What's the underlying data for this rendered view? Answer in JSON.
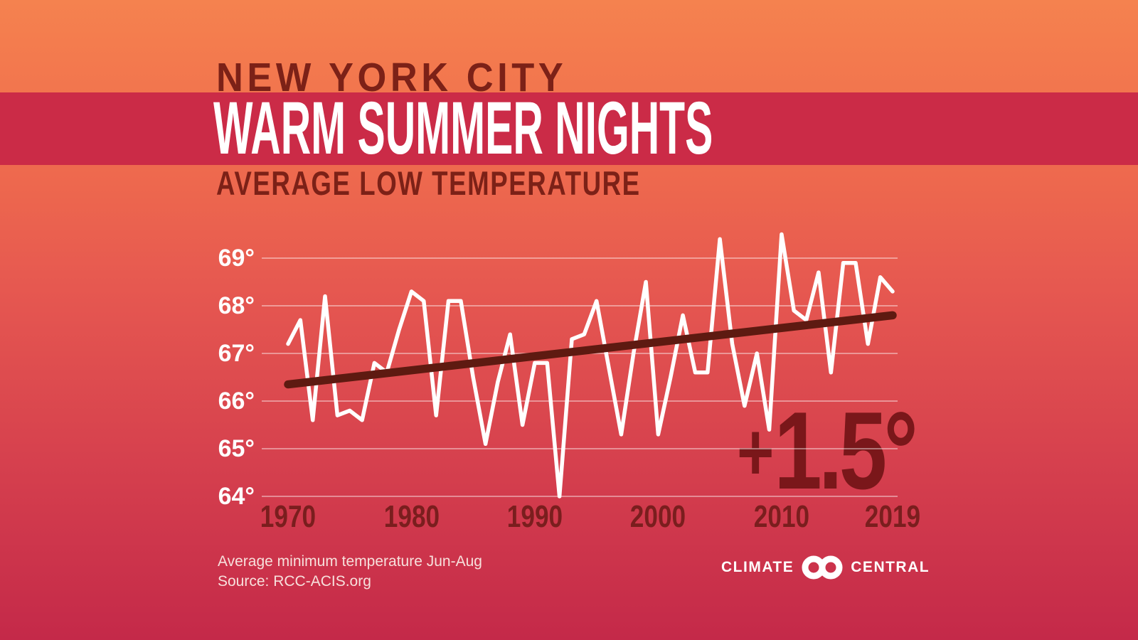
{
  "header": {
    "kicker": "NEW YORK CITY",
    "title": "WARM SUMMER NIGHTS",
    "subtitle": "AVERAGE LOW TEMPERATURE"
  },
  "annotation": {
    "plus": "+",
    "value": "1.5",
    "degree": "°",
    "meaning": "trend increase over 1970-2019"
  },
  "footer": {
    "note_line1": "Average minimum temperature Jun-Aug",
    "note_line2": "Source: RCC-ACIS.org",
    "logo": {
      "left": "CLIMATE",
      "right": "CENTRAL",
      "icon": "interlocking-circles-icon"
    }
  },
  "colors": {
    "background_top": "#F5824F",
    "background_bottom": "#C42949",
    "title_band": "#CB2B47",
    "dark_title_text": "#7C2117",
    "white_text": "#FFFFFF",
    "axis_year_text": "#7A1E1E",
    "data_line": "#FFFFFF",
    "trend_line": "#5E1A11",
    "annotation_text": "#7A171A",
    "gridline": "rgba(255,255,255,0.55)",
    "footnote_text": "#F7E0DC"
  },
  "chart_data": {
    "type": "line",
    "title": "NEW YORK CITY WARM SUMMER NIGHTS — AVERAGE LOW TEMPERATURE",
    "series_name": "Average minimum temperature Jun-Aug (°F)",
    "xlabel": "",
    "ylabel": "",
    "ylim": [
      63.8,
      69.6
    ],
    "grid": true,
    "yticks": [
      69,
      68,
      67,
      66,
      65,
      64
    ],
    "ytick_suffix": "°",
    "xticks": [
      1970,
      1980,
      1990,
      2000,
      2010,
      2019
    ],
    "years": [
      1970,
      1971,
      1972,
      1973,
      1974,
      1975,
      1976,
      1977,
      1978,
      1979,
      1980,
      1981,
      1982,
      1983,
      1984,
      1985,
      1986,
      1987,
      1988,
      1989,
      1990,
      1991,
      1992,
      1993,
      1994,
      1995,
      1996,
      1997,
      1998,
      1999,
      2000,
      2001,
      2002,
      2003,
      2004,
      2005,
      2006,
      2007,
      2008,
      2009,
      2010,
      2011,
      2012,
      2013,
      2014,
      2015,
      2016,
      2017,
      2018,
      2019
    ],
    "values": [
      67.2,
      67.7,
      65.6,
      68.2,
      65.7,
      65.8,
      65.6,
      66.8,
      66.6,
      67.5,
      68.3,
      68.1,
      65.7,
      68.1,
      68.1,
      66.5,
      65.1,
      66.4,
      67.4,
      65.5,
      66.8,
      66.8,
      64.0,
      67.3,
      67.4,
      68.1,
      66.7,
      65.3,
      67.0,
      68.5,
      65.3,
      66.5,
      67.8,
      66.6,
      66.6,
      69.4,
      67.2,
      65.9,
      67.0,
      65.4,
      69.5,
      67.9,
      67.7,
      68.7,
      66.6,
      68.9,
      68.9,
      67.2,
      68.6,
      68.3
    ],
    "trend": {
      "start_year": 1970,
      "start_value": 66.35,
      "end_year": 2019,
      "end_value": 67.8,
      "change_label": "+1.5°"
    },
    "legend_position": "none"
  }
}
